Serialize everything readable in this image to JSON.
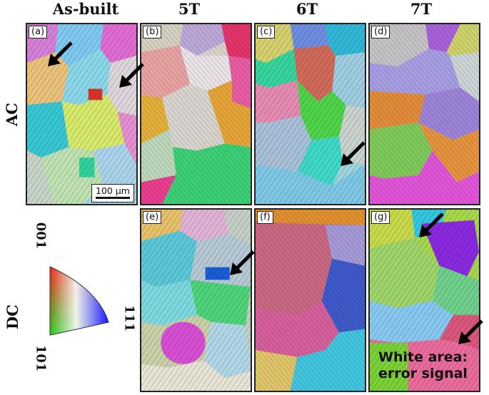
{
  "columns": [
    "As-built",
    "5T",
    "6T",
    "7T"
  ],
  "rows": [
    "AC",
    "DC"
  ],
  "panels": {
    "a": "(a)",
    "b": "(b)",
    "c": "(c)",
    "d": "(d)",
    "e": "(e)",
    "f": "(f)",
    "g": "(g)"
  },
  "scale_bar": "100 μm",
  "legend": {
    "labels": {
      "top": "001",
      "right": "111",
      "bottom": "101"
    },
    "colors": {
      "001": "#ff0000",
      "101": "#00cc00",
      "111": "#0000ff"
    }
  },
  "note": {
    "line1": "White area:",
    "line2": "error signal"
  },
  "arrows_icon": "black-arrow-icon"
}
